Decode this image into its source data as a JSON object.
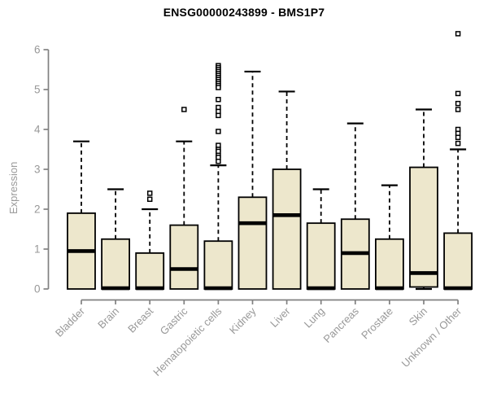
{
  "chart_data": {
    "type": "boxplot",
    "title": "ENSG00000243899 - BMS1P7",
    "ylabel": "Expression",
    "ylim": [
      0,
      6.5
    ],
    "yticks": [
      0,
      1,
      2,
      3,
      4,
      5,
      6
    ],
    "grid": false,
    "legend": "none",
    "categories": [
      "Bladder",
      "Brain",
      "Breast",
      "Gastric",
      "Hematopoietic cells",
      "Kidney",
      "Liver",
      "Lung",
      "Pancreas",
      "Prostate",
      "Skin",
      "Unknown / Other"
    ],
    "series": [
      {
        "category": "Bladder",
        "whisker_low": 0,
        "q1": 0,
        "median": 0.95,
        "q3": 1.9,
        "whisker_high": 3.7,
        "outliers": []
      },
      {
        "category": "Brain",
        "whisker_low": 0,
        "q1": 0,
        "median": 0.02,
        "q3": 1.25,
        "whisker_high": 2.5,
        "outliers": []
      },
      {
        "category": "Breast",
        "whisker_low": 0,
        "q1": 0,
        "median": 0.02,
        "q3": 0.9,
        "whisker_high": 2.0,
        "outliers": [
          2.4,
          2.25
        ]
      },
      {
        "category": "Gastric",
        "whisker_low": 0,
        "q1": 0,
        "median": 0.5,
        "q3": 1.6,
        "whisker_high": 3.7,
        "outliers": [
          4.5
        ]
      },
      {
        "category": "Hematopoietic cells",
        "whisker_low": 0,
        "q1": 0,
        "median": 0.02,
        "q3": 1.2,
        "whisker_high": 3.1,
        "outliers": [
          5.6,
          5.55,
          5.5,
          5.45,
          5.4,
          5.35,
          5.3,
          5.25,
          5.2,
          5.15,
          5.1,
          5.05,
          4.75,
          4.55,
          4.45,
          4.35,
          3.95,
          3.6,
          3.5,
          3.45,
          3.35,
          3.3,
          3.2
        ]
      },
      {
        "category": "Kidney",
        "whisker_low": 0,
        "q1": 0,
        "median": 1.65,
        "q3": 2.3,
        "whisker_high": 5.45,
        "outliers": []
      },
      {
        "category": "Liver",
        "whisker_low": 0,
        "q1": 0,
        "median": 1.85,
        "q3": 3.0,
        "whisker_high": 4.95,
        "outliers": []
      },
      {
        "category": "Lung",
        "whisker_low": 0,
        "q1": 0,
        "median": 0.02,
        "q3": 1.65,
        "whisker_high": 2.5,
        "outliers": []
      },
      {
        "category": "Pancreas",
        "whisker_low": 0,
        "q1": 0,
        "median": 0.9,
        "q3": 1.75,
        "whisker_high": 4.15,
        "outliers": []
      },
      {
        "category": "Prostate",
        "whisker_low": 0,
        "q1": 0,
        "median": 0.02,
        "q3": 1.25,
        "whisker_high": 2.6,
        "outliers": []
      },
      {
        "category": "Skin",
        "whisker_low": 0,
        "q1": 0.05,
        "median": 0.4,
        "q3": 3.05,
        "whisker_high": 4.5,
        "outliers": []
      },
      {
        "category": "Unknown / Other",
        "whisker_low": 0,
        "q1": 0,
        "median": 0.02,
        "q3": 1.4,
        "whisker_high": 3.5,
        "outliers": [
          6.4,
          4.9,
          4.65,
          4.5,
          4.0,
          3.9,
          3.8,
          3.65
        ]
      }
    ]
  },
  "style": {
    "background": "#FFFFFF",
    "box_fill": "#EDE7CC",
    "box_border": "#000000",
    "median_color": "#000000",
    "whisker_color": "#000000",
    "outlier_fill": "#FFFFFF",
    "outlier_border": "#000000",
    "axis_line_color": "#818181",
    "axis_text_color": "#989898",
    "title_color": "#000000"
  }
}
